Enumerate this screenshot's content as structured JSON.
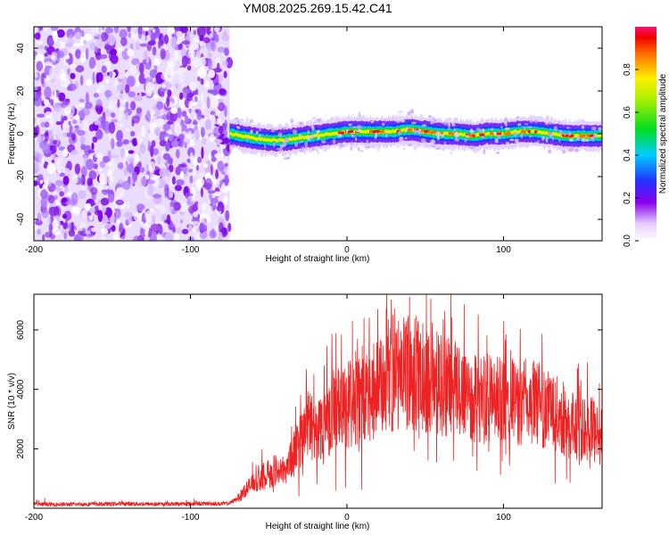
{
  "title": "YM08.2025.269.15.42.C41",
  "chart_data": [
    {
      "type": "heatmap",
      "title": "YM08.2025.269.15.42.C41",
      "xlabel": "Height of straight line (km)",
      "ylabel": "Frequency (Hz)",
      "xlim": [
        -200,
        163
      ],
      "ylim": [
        -50,
        50
      ],
      "xticks": [
        -200,
        -100,
        0,
        100
      ],
      "xtick_labels": [
        "-200",
        "-100",
        "0",
        "100"
      ],
      "yticks": [
        -40,
        -20,
        0,
        20,
        40
      ],
      "ytick_labels": [
        "-40",
        "-20",
        "0",
        "20",
        "40"
      ],
      "noise_region_x": [
        -200,
        -75
      ],
      "signal_ridge": {
        "start_x": -75,
        "x": [
          -75,
          -60,
          -50,
          -40,
          -30,
          -20,
          -10,
          0,
          10,
          20,
          30,
          40,
          50,
          60,
          70,
          80,
          90,
          100,
          110,
          120,
          130,
          140,
          150,
          163
        ],
        "freq": [
          0,
          -2,
          -3,
          -3,
          -2,
          -1,
          0,
          1,
          1,
          1,
          1,
          2,
          1,
          0,
          0,
          -1,
          0,
          0,
          1,
          1,
          0,
          -1,
          -1,
          -1
        ]
      },
      "colorbar": {
        "label": "Normalized spectral amplitude",
        "range": [
          0,
          1
        ],
        "ticks": [
          0.0,
          0.2,
          0.4,
          0.6,
          0.8
        ],
        "tick_labels": [
          "0.0",
          "0.2",
          "0.4",
          "0.6",
          "0.8"
        ]
      }
    },
    {
      "type": "line",
      "xlabel": "Height of straight line (km)",
      "ylabel": "SNR (10 * v/v)",
      "xlim": [
        -200,
        163
      ],
      "ylim": [
        0,
        7200
      ],
      "xticks": [
        -200,
        -100,
        0,
        100
      ],
      "xtick_labels": [
        "-200",
        "-100",
        "0",
        "100"
      ],
      "yticks": [
        2000,
        4000,
        6000
      ],
      "ytick_labels": [
        "2000",
        "4000",
        "6000"
      ],
      "color": "#ee2222",
      "series": [
        {
          "name": "SNR",
          "x": [
            -200,
            -180,
            -160,
            -140,
            -120,
            -100,
            -86,
            -80,
            -75,
            -70,
            -65,
            -60,
            -55,
            -50,
            -45,
            -40,
            -35,
            -30,
            -25,
            -20,
            -15,
            -10,
            -5,
            0,
            5,
            10,
            15,
            20,
            25,
            30,
            35,
            40,
            45,
            50,
            55,
            60,
            65,
            70,
            75,
            80,
            85,
            90,
            95,
            100,
            105,
            110,
            115,
            120,
            125,
            130,
            135,
            140,
            145,
            150,
            155,
            160,
            163
          ],
          "y": [
            100,
            100,
            110,
            120,
            110,
            120,
            130,
            120,
            140,
            300,
            600,
            800,
            1000,
            1100,
            1250,
            1250,
            1600,
            2200,
            2700,
            2600,
            2700,
            3000,
            3200,
            3300,
            3300,
            3500,
            3700,
            3800,
            4000,
            4200,
            4300,
            4400,
            4300,
            4200,
            4100,
            4000,
            3900,
            3850,
            3800,
            3600,
            3550,
            3500,
            3450,
            3450,
            3400,
            3350,
            3400,
            3400,
            3300,
            3100,
            3000,
            2800,
            2600,
            2500,
            2600,
            2400,
            2300
          ]
        }
      ]
    }
  ]
}
